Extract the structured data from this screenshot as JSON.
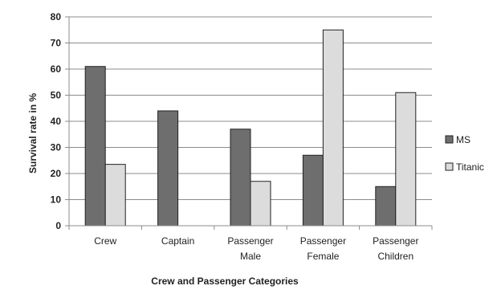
{
  "chart_data": {
    "type": "bar",
    "xlabel": "Crew and Passenger Categories",
    "ylabel": "Survival rate in %",
    "ylim": [
      0,
      80
    ],
    "yticks": [
      0,
      10,
      20,
      30,
      40,
      50,
      60,
      70,
      80
    ],
    "grid": true,
    "legend_position": "right",
    "categories": [
      [
        "Crew"
      ],
      [
        "Captain"
      ],
      [
        "Passenger",
        "Male"
      ],
      [
        "Passenger",
        "Female"
      ],
      [
        "Passenger",
        "Children"
      ]
    ],
    "series": [
      {
        "name": "MS",
        "color": "#6e6e6e",
        "values": [
          61,
          44,
          37,
          27,
          15
        ]
      },
      {
        "name": "Titanic",
        "color": "#dcdcdc",
        "values": [
          23.5,
          0,
          17,
          75,
          51
        ]
      }
    ]
  }
}
